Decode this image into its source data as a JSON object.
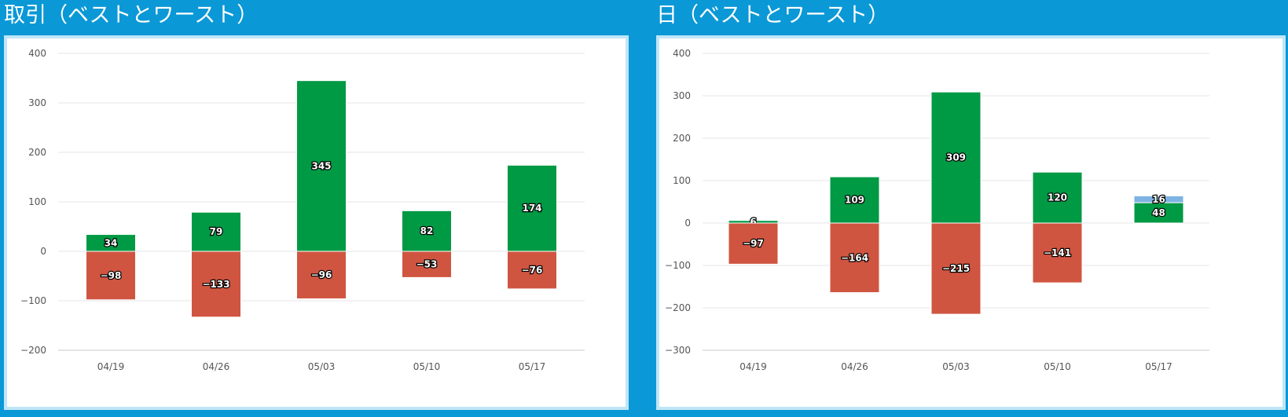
{
  "chart_data": [
    {
      "type": "bar",
      "title": "取引（ベストとワースト）",
      "categories": [
        "04/19",
        "04/26",
        "05/03",
        "05/10",
        "05/17"
      ],
      "series": [
        {
          "color": "#009944",
          "values": [
            34,
            79,
            345,
            82,
            174
          ]
        },
        {
          "color": "#d05541",
          "values": [
            -98,
            -133,
            -96,
            -53,
            -76
          ]
        }
      ],
      "ylim": [
        -200,
        400
      ],
      "yticks": [
        -200,
        -100,
        0,
        100,
        200,
        300,
        400
      ],
      "ytick_labels": [
        "−200",
        "−100",
        "0",
        "100",
        "200",
        "300",
        "400"
      ],
      "grid": true,
      "legend": "none"
    },
    {
      "type": "bar",
      "title": "日（ベストとワースト）",
      "categories": [
        "04/19",
        "04/26",
        "05/03",
        "05/10",
        "05/17"
      ],
      "series": [
        {
          "color": "#009944",
          "values": [
            6,
            109,
            309,
            120,
            48
          ]
        },
        {
          "color": "#d05541",
          "values": [
            -97,
            -164,
            -215,
            -141,
            null
          ]
        },
        {
          "color": "#7eb3e3",
          "values": [
            null,
            null,
            null,
            null,
            16
          ]
        }
      ],
      "stacked": true,
      "ylim": [
        -300,
        400
      ],
      "yticks": [
        -300,
        -200,
        -100,
        0,
        100,
        200,
        300,
        400
      ],
      "ytick_labels": [
        "−300",
        "−200",
        "−100",
        "0",
        "100",
        "200",
        "300",
        "400"
      ],
      "grid": true,
      "legend": "none"
    }
  ]
}
